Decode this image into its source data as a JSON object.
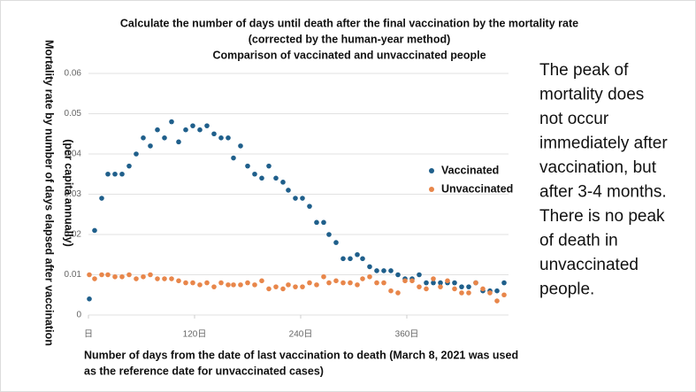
{
  "chart_data": {
    "type": "scatter",
    "title": [
      "Calculate the number of days until death after the final vaccination by the mortality rate",
      "(corrected by the human-year method)",
      "Comparison of vaccinated and unvaccinated people"
    ],
    "y_label": [
      "Mortality rate by number of days elapsed after vaccination",
      "(per capita annually)"
    ],
    "x_label": [
      "Number of days from the date of last vaccination to death (March 8, 2021 was used",
      "as the reference date for unvaccinated cases)"
    ],
    "x": [
      1,
      7,
      15,
      22,
      30,
      38,
      46,
      54,
      62,
      70,
      78,
      86,
      94,
      102,
      110,
      118,
      126,
      134,
      142,
      150,
      158,
      164,
      172,
      180,
      188,
      196,
      204,
      212,
      220,
      226,
      234,
      242,
      250,
      258,
      266,
      272,
      280,
      288,
      296,
      304,
      310,
      318,
      326,
      334,
      342,
      350,
      358,
      366,
      374,
      382,
      390,
      398,
      406,
      414,
      422,
      430,
      438,
      446,
      454,
      462,
      470
    ],
    "series": [
      {
        "name": "Vaccinated",
        "color": "#1f5f8b",
        "values": [
          0.004,
          0.021,
          0.029,
          0.035,
          0.035,
          0.035,
          0.037,
          0.04,
          0.044,
          0.042,
          0.046,
          0.044,
          0.048,
          0.043,
          0.046,
          0.047,
          0.046,
          0.047,
          0.045,
          0.044,
          0.044,
          0.039,
          0.042,
          0.037,
          0.035,
          0.034,
          0.037,
          0.034,
          0.033,
          0.031,
          0.029,
          0.029,
          0.027,
          0.023,
          0.023,
          0.02,
          0.018,
          0.014,
          0.014,
          0.015,
          0.014,
          0.012,
          0.011,
          0.011,
          0.011,
          0.01,
          0.009,
          0.009,
          0.01,
          0.008,
          0.008,
          0.008,
          0.008,
          0.008,
          0.007,
          0.007,
          0.008,
          0.006,
          0.006,
          0.006,
          0.008
        ]
      },
      {
        "name": "Unvaccinated",
        "color": "#e8864a",
        "values": [
          0.01,
          0.009,
          0.01,
          0.01,
          0.0095,
          0.0095,
          0.01,
          0.009,
          0.0095,
          0.01,
          0.009,
          0.009,
          0.009,
          0.0085,
          0.008,
          0.008,
          0.0075,
          0.008,
          0.007,
          0.008,
          0.0075,
          0.0075,
          0.0075,
          0.008,
          0.0075,
          0.0085,
          0.0065,
          0.007,
          0.0065,
          0.0075,
          0.007,
          0.007,
          0.008,
          0.0075,
          0.0095,
          0.008,
          0.0085,
          0.008,
          0.008,
          0.0075,
          0.009,
          0.0095,
          0.008,
          0.008,
          0.006,
          0.0055,
          0.0085,
          0.0085,
          0.007,
          0.0065,
          0.009,
          0.007,
          0.0085,
          0.0065,
          0.0055,
          0.0055,
          0.008,
          0.0065,
          0.0055,
          0.0035,
          0.005
        ]
      }
    ],
    "xlim": [
      0,
      475
    ],
    "ylim": [
      0,
      0.06
    ],
    "xticks": [
      {
        "value": 0,
        "label": "日"
      },
      {
        "value": 120,
        "label": "120日"
      },
      {
        "value": 240,
        "label": "240日"
      },
      {
        "value": 360,
        "label": "360日"
      }
    ],
    "yticks": [
      0,
      0.01,
      0.02,
      0.03,
      0.04,
      0.05,
      0.06
    ],
    "grid": true
  },
  "side_text": [
    "The peak of",
    "mortality does",
    "not occur",
    "immediately after",
    "vaccination, but",
    "after 3-4 months.",
    "There is no peak",
    "of death in",
    "unvaccinated",
    "people."
  ]
}
